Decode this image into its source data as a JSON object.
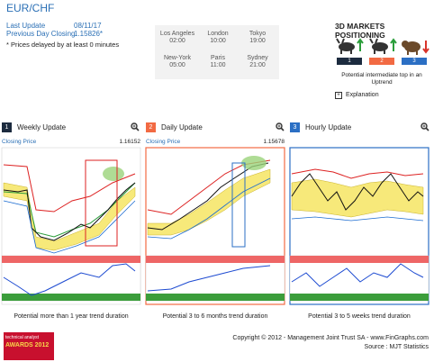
{
  "header": {
    "title": "EUR/CHF",
    "last_update_label": "Last Update",
    "last_update_value": "08/11/17",
    "prev_close_label": "Previous Day Closing",
    "prev_close_value": "1.15826*",
    "note": "* Prices delayed by at least 0 minutes"
  },
  "clocks": [
    {
      "city": "Los Angeles",
      "time": "02:00"
    },
    {
      "city": "London",
      "time": "10:00"
    },
    {
      "city": "Tokyo",
      "time": "19:00"
    },
    {
      "city": "New-York",
      "time": "05:00"
    },
    {
      "city": "Paris",
      "time": "11:00"
    },
    {
      "city": "Sydney",
      "time": "21:00"
    }
  ],
  "positioning": {
    "title": "3D MARKETS POSITIONING",
    "boxes": [
      {
        "num": "1",
        "color": "#1c2b3f"
      },
      {
        "num": "2",
        "color": "#f26a43"
      },
      {
        "num": "3",
        "color": "#2b6fc4"
      }
    ],
    "potential": "Potential intermediate top in an Uptrend",
    "explanation": "Explanation"
  },
  "panels": [
    {
      "num": "1",
      "title": "Weekly Update",
      "closing_label": "Closing Price",
      "closing_value": "1.16152",
      "caption": "Potential more than 1 year trend duration",
      "color": "#1c2b3f"
    },
    {
      "num": "2",
      "title": "Daily Update",
      "closing_label": "Closing Price",
      "closing_value": "1.15678",
      "caption": "Potential 3 to 6 months trend duration",
      "color": "#f26a43"
    },
    {
      "num": "3",
      "title": "Hourly Update",
      "closing_label": "",
      "closing_value": "",
      "caption": "Potential 3 to 5 weeks trend duration",
      "color": "#2b6fc4"
    }
  ],
  "footer": {
    "copyright": "Copyright © 2012 - Management Joint Trust SA - www.FinGraphs.com",
    "source": "Source : MJT Statistics"
  },
  "award": {
    "line1": "technical analyst",
    "line2": "AWARDS 2012"
  }
}
